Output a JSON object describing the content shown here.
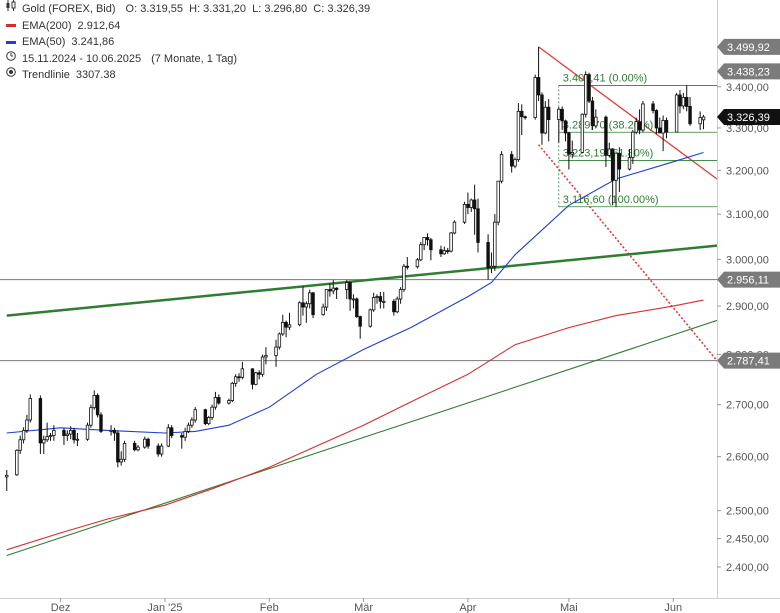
{
  "legend": {
    "symbol_label": "Gold (FOREX, Bid)",
    "ohlc": "O: 3.319,55  H: 3.331,20  L: 3.296,80  C: 3.326,39",
    "ema200_label": "EMA(200)",
    "ema200_value": "2.912,64",
    "ema200_color": "#d32f2f",
    "ema50_label": "EMA(50)",
    "ema50_value": "3.241,86",
    "ema50_color": "#1e3fd1",
    "range_label": "15.11.2024 - 10.06.2025",
    "range_detail": "(7 Monate, 1 Tag)",
    "trendline_label": "Trendlinie",
    "trendline_value": "3307.38",
    "icons": [
      "candles-icon",
      "line-icon",
      "line-icon",
      "clock-icon",
      "target-icon"
    ]
  },
  "chart_data": {
    "type": "candlestick",
    "yscale": "log",
    "ylim": [
      2350,
      3600
    ],
    "x_ticks": [
      "Dez",
      "Jan '25",
      "Feb",
      "Mär",
      "Apr",
      "Mai",
      "Jun"
    ],
    "x_tick_dates": [
      "2024-12-01",
      "2025-01-01",
      "2025-02-01",
      "2025-03-01",
      "2025-04-01",
      "2025-05-01",
      "2025-06-01"
    ],
    "x_range": [
      "2024-11-15",
      "2025-06-10"
    ],
    "y_ticks": [
      {
        "v": 2400,
        "label": "2.400,00"
      },
      {
        "v": 2450,
        "label": "2.450,00"
      },
      {
        "v": 2500,
        "label": "2.500,00"
      },
      {
        "v": 2600,
        "label": "2.600,00"
      },
      {
        "v": 2700,
        "label": "2.700,00"
      },
      {
        "v": 2800,
        "label": "2.800,00"
      },
      {
        "v": 2900,
        "label": "2.900,00"
      },
      {
        "v": 3000,
        "label": "3.000,00"
      },
      {
        "v": 3100,
        "label": "3.100,00"
      },
      {
        "v": 3200,
        "label": "3.200,00"
      },
      {
        "v": 3300,
        "label": "3.300,00"
      },
      {
        "v": 3400,
        "label": "3.400,00"
      }
    ],
    "price_marks": [
      {
        "v": 3499.92,
        "label": "3.499,92",
        "kind": "gray"
      },
      {
        "v": 3438.23,
        "label": "3.438,23",
        "kind": "gray"
      },
      {
        "v": 3326.39,
        "label": "3.326,39",
        "kind": "current"
      },
      {
        "v": 2956.11,
        "label": "2.956,11",
        "kind": "gray"
      },
      {
        "v": 2787.41,
        "label": "2.787,41",
        "kind": "gray"
      }
    ],
    "horizontal_lines": [
      2956.11,
      2787.41
    ],
    "fibonacci": {
      "start_date": "2025-04-28",
      "end_date": "2025-06-10",
      "color": "#2e7d32",
      "levels": [
        {
          "v": 3403.41,
          "label": "3.403,41 (0.00%)"
        },
        {
          "v": 3289.7,
          "label": "3.289,70 (38.20%)"
        },
        {
          "v": 3223.19,
          "label": "3.223,19 (61.80%)"
        },
        {
          "v": 3116.6,
          "label": "3.116,60 (100.00%)"
        }
      ]
    },
    "trendlines": [
      {
        "from": [
          "2025-04-22",
          3499.92
        ],
        "to": [
          "2025-06-14",
          3180
        ],
        "color": "#e53935",
        "width": 1.3,
        "style": "solid"
      },
      {
        "from": [
          "2025-04-22",
          3260
        ],
        "to": [
          "2025-06-14",
          2787.41
        ],
        "color": "#e53935",
        "width": 1.6,
        "style": "dotted"
      },
      {
        "from": [
          "2024-11-15",
          2880
        ],
        "to": [
          "2025-06-14",
          3030
        ],
        "color": "#2e7d32",
        "width": 2.5,
        "style": "solid"
      },
      {
        "from": [
          "2024-11-15",
          2420
        ],
        "to": [
          "2025-06-14",
          2870
        ],
        "color": "#2e7d32",
        "width": 1.1,
        "style": "solid"
      }
    ],
    "series": [
      {
        "name": "EMA(200)",
        "color": "#d32f2f",
        "points": [
          [
            "2024-11-15",
            2430
          ],
          [
            "2024-12-01",
            2460
          ],
          [
            "2024-12-15",
            2485
          ],
          [
            "2025-01-01",
            2510
          ],
          [
            "2025-01-15",
            2540
          ],
          [
            "2025-02-01",
            2580
          ],
          [
            "2025-02-15",
            2620
          ],
          [
            "2025-03-01",
            2660
          ],
          [
            "2025-03-15",
            2705
          ],
          [
            "2025-04-01",
            2760
          ],
          [
            "2025-04-15",
            2820
          ],
          [
            "2025-05-01",
            2855
          ],
          [
            "2025-05-15",
            2880
          ],
          [
            "2025-06-01",
            2900
          ],
          [
            "2025-06-10",
            2912.64
          ]
        ]
      },
      {
        "name": "EMA(50)",
        "color": "#1e3fd1",
        "points": [
          [
            "2024-11-15",
            2645
          ],
          [
            "2024-12-01",
            2655
          ],
          [
            "2024-12-15",
            2650
          ],
          [
            "2025-01-01",
            2645
          ],
          [
            "2025-01-10",
            2648
          ],
          [
            "2025-01-20",
            2660
          ],
          [
            "2025-02-01",
            2695
          ],
          [
            "2025-02-15",
            2760
          ],
          [
            "2025-03-01",
            2810
          ],
          [
            "2025-03-15",
            2855
          ],
          [
            "2025-04-01",
            2920
          ],
          [
            "2025-04-08",
            2950
          ],
          [
            "2025-04-15",
            3010
          ],
          [
            "2025-05-01",
            3120
          ],
          [
            "2025-05-15",
            3180
          ],
          [
            "2025-06-01",
            3220
          ],
          [
            "2025-06-10",
            3241.86
          ]
        ]
      }
    ],
    "candles": [
      [
        "2024-11-15",
        2562,
        2575,
        2536,
        2565
      ],
      [
        "2024-11-18",
        2566,
        2614,
        2564,
        2612
      ],
      [
        "2024-11-19",
        2612,
        2640,
        2605,
        2632
      ],
      [
        "2024-11-20",
        2632,
        2656,
        2625,
        2650
      ],
      [
        "2024-11-21",
        2650,
        2680,
        2645,
        2670
      ],
      [
        "2024-11-22",
        2670,
        2720,
        2665,
        2712
      ],
      [
        "2024-11-25",
        2712,
        2718,
        2605,
        2626
      ],
      [
        "2024-11-26",
        2626,
        2640,
        2605,
        2632
      ],
      [
        "2024-11-27",
        2632,
        2665,
        2628,
        2638
      ],
      [
        "2024-11-28",
        2638,
        2645,
        2630,
        2640
      ],
      [
        "2024-11-29",
        2640,
        2660,
        2630,
        2650
      ],
      [
        "2024-12-02",
        2650,
        2655,
        2622,
        2640
      ],
      [
        "2024-12-03",
        2640,
        2650,
        2630,
        2643
      ],
      [
        "2024-12-04",
        2643,
        2658,
        2633,
        2650
      ],
      [
        "2024-12-05",
        2650,
        2655,
        2625,
        2632
      ],
      [
        "2024-12-06",
        2632,
        2645,
        2620,
        2633
      ],
      [
        "2024-12-09",
        2633,
        2665,
        2630,
        2660
      ],
      [
        "2024-12-10",
        2660,
        2700,
        2655,
        2694
      ],
      [
        "2024-12-11",
        2694,
        2728,
        2690,
        2718
      ],
      [
        "2024-12-12",
        2718,
        2722,
        2675,
        2680
      ],
      [
        "2024-12-13",
        2680,
        2685,
        2645,
        2648
      ],
      [
        "2024-12-16",
        2648,
        2660,
        2640,
        2650
      ],
      [
        "2024-12-17",
        2650,
        2655,
        2630,
        2645
      ],
      [
        "2024-12-18",
        2645,
        2650,
        2580,
        2590
      ],
      [
        "2024-12-19",
        2590,
        2610,
        2583,
        2595
      ],
      [
        "2024-12-20",
        2595,
        2630,
        2590,
        2625
      ],
      [
        "2024-12-23",
        2625,
        2630,
        2610,
        2613
      ],
      [
        "2024-12-24",
        2613,
        2622,
        2610,
        2618
      ],
      [
        "2024-12-26",
        2618,
        2638,
        2615,
        2633
      ],
      [
        "2024-12-27",
        2633,
        2636,
        2615,
        2620
      ],
      [
        "2024-12-30",
        2620,
        2625,
        2600,
        2605
      ],
      [
        "2024-12-31",
        2605,
        2625,
        2600,
        2620
      ],
      [
        "2025-01-02",
        2620,
        2662,
        2618,
        2655
      ],
      [
        "2025-01-03",
        2655,
        2660,
        2635,
        2640
      ],
      [
        "2025-01-06",
        2640,
        2645,
        2615,
        2637
      ],
      [
        "2025-01-07",
        2637,
        2655,
        2630,
        2648
      ],
      [
        "2025-01-08",
        2648,
        2665,
        2645,
        2660
      ],
      [
        "2025-01-09",
        2660,
        2675,
        2655,
        2670
      ],
      [
        "2025-01-10",
        2670,
        2695,
        2665,
        2690
      ],
      [
        "2025-01-13",
        2690,
        2692,
        2660,
        2663
      ],
      [
        "2025-01-14",
        2663,
        2678,
        2660,
        2675
      ],
      [
        "2025-01-15",
        2675,
        2700,
        2670,
        2695
      ],
      [
        "2025-01-16",
        2695,
        2725,
        2690,
        2714
      ],
      [
        "2025-01-17",
        2714,
        2720,
        2700,
        2703
      ],
      [
        "2025-01-20",
        2703,
        2712,
        2700,
        2708
      ],
      [
        "2025-01-21",
        2708,
        2745,
        2705,
        2742
      ],
      [
        "2025-01-22",
        2742,
        2760,
        2735,
        2755
      ],
      [
        "2025-01-23",
        2755,
        2762,
        2745,
        2754
      ],
      [
        "2025-01-24",
        2754,
        2785,
        2750,
        2771
      ],
      [
        "2025-01-27",
        2771,
        2772,
        2730,
        2740
      ],
      [
        "2025-01-28",
        2740,
        2765,
        2738,
        2763
      ],
      [
        "2025-01-29",
        2763,
        2768,
        2750,
        2760
      ],
      [
        "2025-01-30",
        2760,
        2800,
        2755,
        2795
      ],
      [
        "2025-01-31",
        2795,
        2815,
        2780,
        2798
      ],
      [
        "2025-02-03",
        2798,
        2830,
        2775,
        2815
      ],
      [
        "2025-02-04",
        2815,
        2845,
        2810,
        2842
      ],
      [
        "2025-02-05",
        2842,
        2882,
        2838,
        2866
      ],
      [
        "2025-02-06",
        2866,
        2870,
        2835,
        2856
      ],
      [
        "2025-02-07",
        2856,
        2886,
        2850,
        2861
      ],
      [
        "2025-02-10",
        2861,
        2910,
        2858,
        2907
      ],
      [
        "2025-02-11",
        2907,
        2942,
        2880,
        2898
      ],
      [
        "2025-02-12",
        2898,
        2910,
        2865,
        2905
      ],
      [
        "2025-02-13",
        2905,
        2935,
        2895,
        2928
      ],
      [
        "2025-02-14",
        2928,
        2930,
        2875,
        2882
      ],
      [
        "2025-02-17",
        2882,
        2905,
        2880,
        2898
      ],
      [
        "2025-02-18",
        2898,
        2935,
        2890,
        2935
      ],
      [
        "2025-02-19",
        2935,
        2948,
        2920,
        2932
      ],
      [
        "2025-02-20",
        2932,
        2955,
        2925,
        2938
      ],
      [
        "2025-02-21",
        2938,
        2940,
        2915,
        2935
      ],
      [
        "2025-02-24",
        2935,
        2955,
        2915,
        2950
      ],
      [
        "2025-02-25",
        2950,
        2952,
        2890,
        2915
      ],
      [
        "2025-02-26",
        2915,
        2925,
        2895,
        2915
      ],
      [
        "2025-02-27",
        2915,
        2918,
        2875,
        2878
      ],
      [
        "2025-02-28",
        2878,
        2880,
        2832,
        2858
      ],
      [
        "2025-03-03",
        2858,
        2895,
        2855,
        2892
      ],
      [
        "2025-03-04",
        2892,
        2928,
        2888,
        2918
      ],
      [
        "2025-03-05",
        2918,
        2925,
        2905,
        2920
      ],
      [
        "2025-03-06",
        2920,
        2930,
        2895,
        2910
      ],
      [
        "2025-03-07",
        2910,
        2930,
        2895,
        2910
      ],
      [
        "2025-03-10",
        2910,
        2915,
        2880,
        2888
      ],
      [
        "2025-03-11",
        2888,
        2920,
        2885,
        2915
      ],
      [
        "2025-03-12",
        2915,
        2940,
        2905,
        2935
      ],
      [
        "2025-03-13",
        2935,
        2990,
        2930,
        2985
      ],
      [
        "2025-03-14",
        2985,
        3005,
        2978,
        2984
      ],
      [
        "2025-03-17",
        2984,
        3003,
        2980,
        2999
      ],
      [
        "2025-03-18",
        2999,
        3038,
        2996,
        3032
      ],
      [
        "2025-03-19",
        3032,
        3045,
        3020,
        3048
      ],
      [
        "2025-03-20",
        3048,
        3057,
        3030,
        3043
      ],
      [
        "2025-03-21",
        3043,
        3047,
        2998,
        3021
      ],
      [
        "2025-03-24",
        3021,
        3030,
        3005,
        3012
      ],
      [
        "2025-03-25",
        3012,
        3028,
        3010,
        3019
      ],
      [
        "2025-03-26",
        3019,
        3025,
        3012,
        3018
      ],
      [
        "2025-03-27",
        3018,
        3060,
        3015,
        3058
      ],
      [
        "2025-03-28",
        3058,
        3086,
        3055,
        3082
      ],
      [
        "2025-03-31",
        3082,
        3128,
        3078,
        3122
      ],
      [
        "2025-04-01",
        3122,
        3149,
        3100,
        3115
      ],
      [
        "2025-04-02",
        3115,
        3135,
        3105,
        3132
      ],
      [
        "2025-04-03",
        3132,
        3167,
        3054,
        3112
      ],
      [
        "2025-04-04",
        3112,
        3135,
        3015,
        3037
      ],
      [
        "2025-04-07",
        3037,
        3055,
        2956,
        2982
      ],
      [
        "2025-04-08",
        2982,
        3015,
        2970,
        2985
      ],
      [
        "2025-04-09",
        2985,
        3100,
        2975,
        3082
      ],
      [
        "2025-04-10",
        3082,
        3175,
        3075,
        3175
      ],
      [
        "2025-04-11",
        3175,
        3245,
        3170,
        3237
      ],
      [
        "2025-04-14",
        3237,
        3245,
        3195,
        3210
      ],
      [
        "2025-04-15",
        3210,
        3230,
        3205,
        3225
      ],
      [
        "2025-04-16",
        3225,
        3360,
        3220,
        3340
      ],
      [
        "2025-04-17",
        3340,
        3357,
        3283,
        3327
      ],
      [
        "2025-04-18",
        3327,
        3330,
        3320,
        3325
      ],
      [
        "2025-04-21",
        3325,
        3430,
        3320,
        3423
      ],
      [
        "2025-04-22",
        3423,
        3499.92,
        3365,
        3380
      ],
      [
        "2025-04-23",
        3380,
        3386,
        3260,
        3288
      ],
      [
        "2025-04-24",
        3288,
        3365,
        3285,
        3350
      ],
      [
        "2025-04-25",
        3350,
        3370,
        3268,
        3320
      ],
      [
        "2025-04-28",
        3320,
        3350,
        3265,
        3345
      ],
      [
        "2025-04-29",
        3345,
        3352,
        3295,
        3317
      ],
      [
        "2025-04-30",
        3317,
        3320,
        3268,
        3288
      ],
      [
        "2025-05-01",
        3288,
        3290,
        3202,
        3238
      ],
      [
        "2025-05-02",
        3238,
        3270,
        3228,
        3242
      ],
      [
        "2025-05-05",
        3242,
        3335,
        3240,
        3333
      ],
      [
        "2025-05-06",
        3333,
        3438.23,
        3325,
        3430
      ],
      [
        "2025-05-07",
        3430,
        3435,
        3360,
        3365
      ],
      [
        "2025-05-08",
        3365,
        3375,
        3295,
        3305
      ],
      [
        "2025-05-09",
        3305,
        3345,
        3300,
        3326
      ],
      [
        "2025-05-12",
        3326,
        3330,
        3208,
        3235
      ],
      [
        "2025-05-13",
        3235,
        3265,
        3230,
        3250
      ],
      [
        "2025-05-14",
        3250,
        3252,
        3120,
        3177
      ],
      [
        "2025-05-15",
        3177,
        3240,
        3116.6,
        3240
      ],
      [
        "2025-05-16",
        3240,
        3254,
        3150,
        3203
      ],
      [
        "2025-05-19",
        3203,
        3250,
        3200,
        3230
      ],
      [
        "2025-05-20",
        3230,
        3295,
        3215,
        3290
      ],
      [
        "2025-05-21",
        3290,
        3325,
        3285,
        3315
      ],
      [
        "2025-05-22",
        3315,
        3345,
        3285,
        3295
      ],
      [
        "2025-05-23",
        3295,
        3365,
        3290,
        3358
      ],
      [
        "2025-05-26",
        3358,
        3365,
        3335,
        3342
      ],
      [
        "2025-05-27",
        3342,
        3345,
        3285,
        3300
      ],
      [
        "2025-05-28",
        3300,
        3325,
        3290,
        3288
      ],
      [
        "2025-05-29",
        3288,
        3330,
        3245,
        3318
      ],
      [
        "2025-05-30",
        3318,
        3325,
        3275,
        3290
      ],
      [
        "2025-06-02",
        3290,
        3385,
        3290,
        3380
      ],
      [
        "2025-06-03",
        3380,
        3392,
        3335,
        3353
      ],
      [
        "2025-06-04",
        3353,
        3385,
        3345,
        3374
      ],
      [
        "2025-06-05",
        3374,
        3403.41,
        3340,
        3352
      ],
      [
        "2025-06-06",
        3352,
        3375,
        3305,
        3310
      ],
      [
        "2025-06-09",
        3310,
        3340,
        3295,
        3325
      ],
      [
        "2025-06-10",
        3319.55,
        3331.2,
        3296.8,
        3326.39
      ]
    ]
  }
}
